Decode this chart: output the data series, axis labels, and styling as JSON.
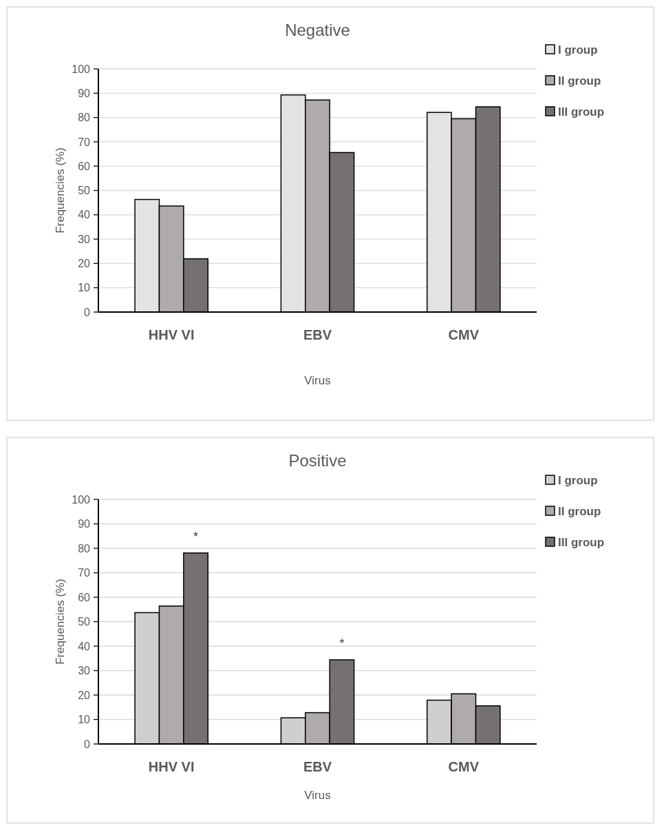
{
  "chart_data": [
    {
      "type": "bar",
      "title": "Negative",
      "xlabel": "Virus",
      "ylabel": "Frequencies  (%)",
      "categories": [
        "HHV VI",
        "EBV",
        "CMV"
      ],
      "series": [
        {
          "name": "I group",
          "color": "#e3e3e3",
          "values": [
            46.3,
            89.3,
            82.1
          ]
        },
        {
          "name": "II group",
          "color": "#afabab",
          "values": [
            43.6,
            87.2,
            79.5
          ]
        },
        {
          "name": "III group",
          "color": "#767171",
          "values": [
            21.9,
            65.6,
            84.4
          ]
        }
      ],
      "ylim": [
        0,
        100
      ],
      "yticks": [
        0,
        10,
        20,
        30,
        40,
        50,
        60,
        70,
        80,
        90,
        100
      ],
      "grid": "y",
      "legend": "top right"
    },
    {
      "type": "bar",
      "title": "Positive",
      "xlabel": "Virus",
      "ylabel": "Frequencies  (%)",
      "categories": [
        "HHV VI",
        "EBV",
        "CMV"
      ],
      "series": [
        {
          "name": "I group",
          "color": "#d0cecf",
          "values": [
            53.7,
            10.7,
            17.9
          ]
        },
        {
          "name": "II group",
          "color": "#afabab",
          "values": [
            56.4,
            12.8,
            20.5
          ]
        },
        {
          "name": "III group",
          "color": "#767171",
          "values": [
            78.1,
            34.4,
            15.6
          ]
        }
      ],
      "ylim": [
        0,
        100
      ],
      "yticks": [
        0,
        10,
        20,
        30,
        40,
        50,
        60,
        70,
        80,
        90,
        100
      ],
      "grid": "y",
      "legend": "top right",
      "annotations": [
        "*",
        "*"
      ]
    }
  ]
}
